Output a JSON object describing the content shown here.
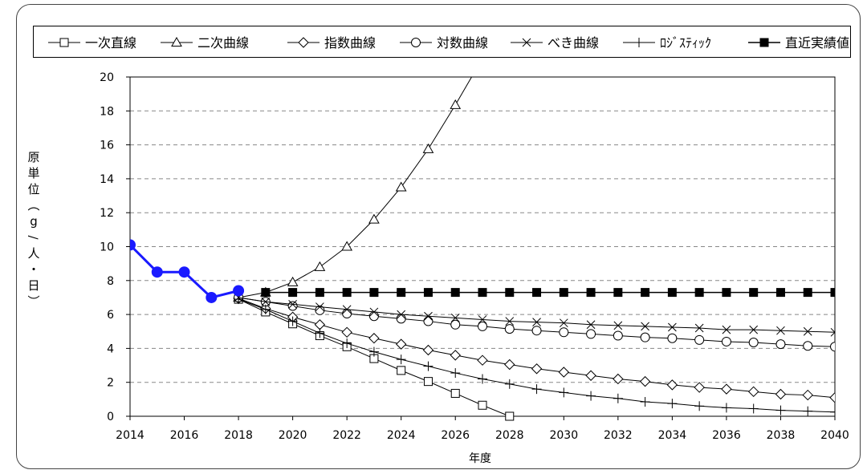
{
  "chart_data": {
    "type": "line",
    "title": "",
    "xlabel": "年度",
    "ylabel": "原単位（g/人・日）",
    "xlim": [
      2014,
      2040
    ],
    "ylim": [
      0,
      20
    ],
    "xticks": [
      "2014",
      "2016",
      "2018",
      "2020",
      "2022",
      "2024",
      "2026",
      "2028",
      "2030",
      "2032",
      "2034",
      "2036",
      "2038",
      "2040"
    ],
    "yticks": [
      "0",
      "2",
      "4",
      "6",
      "8",
      "10",
      "12",
      "14",
      "16",
      "18",
      "20"
    ],
    "grid": "horizontal dashed",
    "legend_position": "top",
    "series": [
      {
        "name": "一次直線",
        "marker": "square-open",
        "color": "#000000",
        "x": [
          2018,
          2019,
          2020,
          2021,
          2022,
          2023,
          2024,
          2025,
          2026,
          2027,
          2028
        ],
        "y": [
          6.9,
          6.15,
          5.45,
          4.75,
          4.1,
          3.4,
          2.7,
          2.05,
          1.35,
          0.65,
          0.0
        ]
      },
      {
        "name": "二次曲線",
        "marker": "triangle-open",
        "color": "#000000",
        "x": [
          2018,
          2019,
          2020,
          2021,
          2022,
          2023,
          2024,
          2025,
          2026,
          2026.6
        ],
        "y": [
          7.0,
          7.3,
          7.9,
          8.8,
          10.0,
          11.6,
          13.5,
          15.75,
          18.35,
          20.0
        ]
      },
      {
        "name": "指数曲線",
        "marker": "diamond-open",
        "color": "#000000",
        "x": [
          2018,
          2019,
          2020,
          2021,
          2022,
          2023,
          2024,
          2025,
          2026,
          2027,
          2028,
          2029,
          2030,
          2031,
          2032,
          2033,
          2034,
          2035,
          2036,
          2037,
          2038,
          2039,
          2040
        ],
        "y": [
          6.95,
          6.35,
          5.85,
          5.4,
          4.95,
          4.6,
          4.25,
          3.9,
          3.6,
          3.3,
          3.05,
          2.8,
          2.6,
          2.4,
          2.2,
          2.05,
          1.85,
          1.7,
          1.6,
          1.45,
          1.3,
          1.25,
          1.1
        ]
      },
      {
        "name": "対数曲線",
        "marker": "circle-open",
        "color": "#000000",
        "x": [
          2018,
          2019,
          2020,
          2021,
          2022,
          2023,
          2024,
          2025,
          2026,
          2027,
          2028,
          2029,
          2030,
          2031,
          2032,
          2033,
          2034,
          2035,
          2036,
          2037,
          2038,
          2039,
          2040
        ],
        "y": [
          7.0,
          6.75,
          6.5,
          6.25,
          6.05,
          5.9,
          5.75,
          5.6,
          5.4,
          5.3,
          5.15,
          5.05,
          4.95,
          4.85,
          4.75,
          4.65,
          4.6,
          4.5,
          4.4,
          4.35,
          4.25,
          4.15,
          4.1
        ]
      },
      {
        "name": "べき曲線",
        "marker": "x",
        "color": "#000000",
        "x": [
          2018,
          2019,
          2020,
          2021,
          2022,
          2023,
          2024,
          2025,
          2026,
          2027,
          2028,
          2029,
          2030,
          2031,
          2032,
          2033,
          2034,
          2035,
          2036,
          2037,
          2038,
          2039,
          2040
        ],
        "y": [
          7.0,
          6.75,
          6.6,
          6.45,
          6.3,
          6.15,
          6.0,
          5.9,
          5.8,
          5.7,
          5.6,
          5.55,
          5.5,
          5.4,
          5.35,
          5.3,
          5.25,
          5.2,
          5.1,
          5.1,
          5.05,
          5.0,
          4.95
        ]
      },
      {
        "name": "ﾛｼﾞｽﾃｨｯｸ",
        "marker": "plus",
        "color": "#000000",
        "x": [
          2018,
          2019,
          2020,
          2021,
          2022,
          2023,
          2024,
          2025,
          2026,
          2027,
          2028,
          2029,
          2030,
          2031,
          2032,
          2033,
          2034,
          2035,
          2036,
          2037,
          2038,
          2039,
          2040
        ],
        "y": [
          6.9,
          6.3,
          5.6,
          4.9,
          4.3,
          3.8,
          3.35,
          2.95,
          2.55,
          2.2,
          1.9,
          1.6,
          1.4,
          1.2,
          1.05,
          0.85,
          0.75,
          0.6,
          0.5,
          0.45,
          0.35,
          0.3,
          0.25
        ]
      },
      {
        "name": "直近実績値",
        "marker": "square-filled",
        "color": "#000000",
        "x": [
          2019,
          2020,
          2021,
          2022,
          2023,
          2024,
          2025,
          2026,
          2027,
          2028,
          2029,
          2030,
          2031,
          2032,
          2033,
          2034,
          2035,
          2036,
          2037,
          2038,
          2039,
          2040
        ],
        "y": [
          7.3,
          7.3,
          7.3,
          7.3,
          7.3,
          7.3,
          7.3,
          7.3,
          7.3,
          7.3,
          7.3,
          7.3,
          7.3,
          7.3,
          7.3,
          7.3,
          7.3,
          7.3,
          7.3,
          7.3,
          7.3,
          7.3
        ]
      },
      {
        "name": "",
        "marker": "circle-filled",
        "color": "#1a1aff",
        "role": "actual",
        "x": [
          2014,
          2015,
          2016,
          2017,
          2018
        ],
        "y": [
          10.1,
          8.5,
          8.5,
          7.0,
          7.4
        ]
      }
    ]
  }
}
